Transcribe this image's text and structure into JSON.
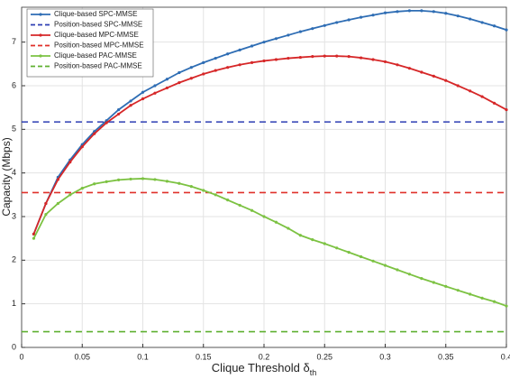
{
  "chart_data": {
    "type": "line",
    "x_label": {
      "text": "Clique Threshold δ",
      "subscript": "th"
    },
    "y_label": "Capacity (Mbps)",
    "x": [
      0.01,
      0.02,
      0.03,
      0.04,
      0.05,
      0.06,
      0.07,
      0.08,
      0.09,
      0.1,
      0.11,
      0.12,
      0.13,
      0.14,
      0.15,
      0.16,
      0.17,
      0.18,
      0.19,
      0.2,
      0.21,
      0.22,
      0.23,
      0.24,
      0.25,
      0.26,
      0.27,
      0.28,
      0.29,
      0.3,
      0.31,
      0.32,
      0.33,
      0.34,
      0.35,
      0.36,
      0.37,
      0.38,
      0.39,
      0.4
    ],
    "series": [
      {
        "name": "Clique-based SPC-MMSE",
        "color": "#2e6db4",
        "values": [
          2.6,
          3.3,
          3.9,
          4.3,
          4.65,
          4.95,
          5.2,
          5.45,
          5.65,
          5.85,
          6.0,
          6.15,
          6.3,
          6.42,
          6.53,
          6.63,
          6.73,
          6.82,
          6.91,
          7.0,
          7.08,
          7.16,
          7.24,
          7.31,
          7.38,
          7.45,
          7.51,
          7.57,
          7.62,
          7.67,
          7.7,
          7.72,
          7.72,
          7.7,
          7.66,
          7.6,
          7.53,
          7.45,
          7.37,
          7.28
        ]
      },
      {
        "name": "Position-based SPC-MMSE",
        "color": "#2e3fb4",
        "dashed": true,
        "value": 5.17
      },
      {
        "name": "Clique-based MPC-MMSE",
        "color": "#d62728",
        "values": [
          2.6,
          3.3,
          3.85,
          4.25,
          4.6,
          4.9,
          5.15,
          5.35,
          5.55,
          5.7,
          5.83,
          5.95,
          6.07,
          6.17,
          6.27,
          6.35,
          6.42,
          6.48,
          6.53,
          6.57,
          6.6,
          6.63,
          6.65,
          6.67,
          6.68,
          6.68,
          6.67,
          6.64,
          6.6,
          6.55,
          6.48,
          6.4,
          6.31,
          6.22,
          6.12,
          6.0,
          5.88,
          5.75,
          5.6,
          5.45
        ]
      },
      {
        "name": "Position-based MPC-MMSE",
        "color": "#e0302a",
        "dashed": true,
        "value": 3.55
      },
      {
        "name": "Clique-based PAC-MMSE",
        "color": "#7cc242",
        "values": [
          2.5,
          3.05,
          3.3,
          3.5,
          3.65,
          3.75,
          3.8,
          3.84,
          3.86,
          3.87,
          3.85,
          3.81,
          3.76,
          3.69,
          3.6,
          3.5,
          3.38,
          3.26,
          3.14,
          3.0,
          2.87,
          2.73,
          2.57,
          2.47,
          2.38,
          2.28,
          2.18,
          2.08,
          1.98,
          1.88,
          1.78,
          1.68,
          1.58,
          1.49,
          1.4,
          1.31,
          1.22,
          1.13,
          1.05,
          0.95
        ]
      },
      {
        "name": "Position-based PAC-MMSE",
        "color": "#5fb030",
        "dashed": true,
        "value": 0.36
      }
    ],
    "xlim": [
      0,
      0.4
    ],
    "xticks": [
      0,
      0.05,
      0.1,
      0.15,
      0.2,
      0.25,
      0.3,
      0.35,
      0.4
    ],
    "ylim": [
      0,
      7.8
    ],
    "yticks": [
      0,
      1,
      2,
      3,
      4,
      5,
      6,
      7
    ],
    "grid": true,
    "legend": "upper-left"
  }
}
